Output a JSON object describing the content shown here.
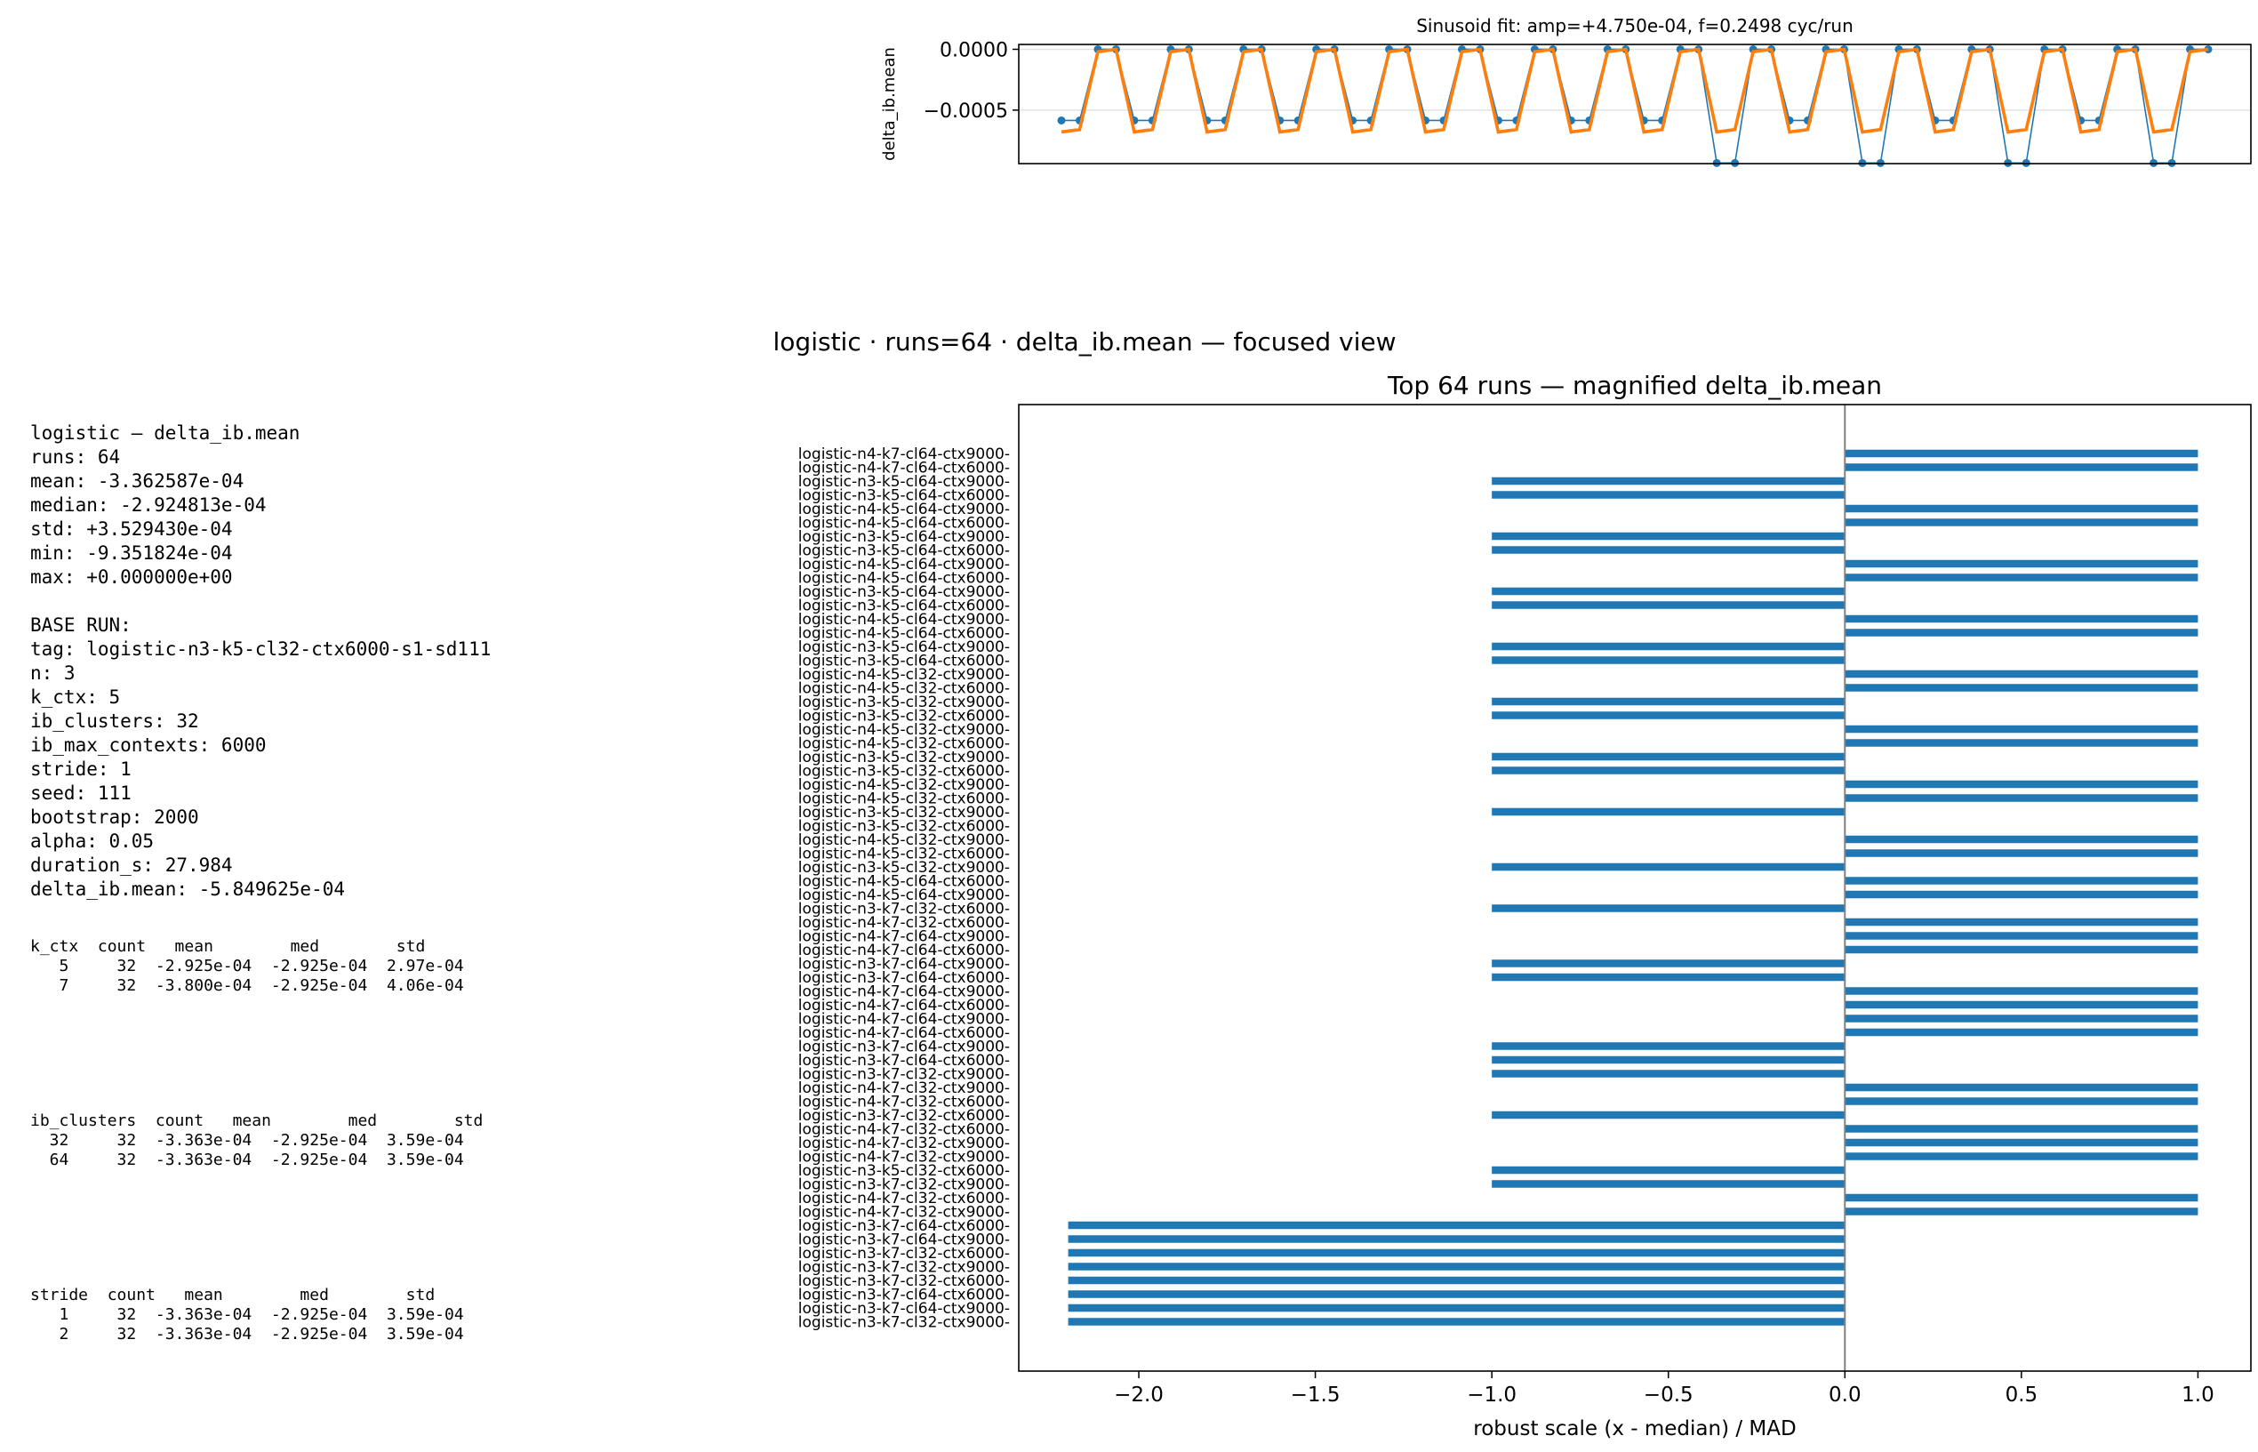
{
  "stats_panel": [
    "logistic — delta_ib.mean",
    "runs: 64",
    "mean: -3.362587e-04",
    "median: -2.924813e-04",
    "std: +3.529430e-04",
    "min: -9.351824e-04",
    "max: +0.000000e+00",
    "",
    "BASE RUN:",
    "tag: logistic-n3-k5-cl32-ctx6000-s1-sd111",
    "n: 3",
    "k_ctx: 5",
    "ib_clusters: 32",
    "ib_max_contexts: 6000",
    "stride: 1",
    "seed: 111",
    "bootstrap: 2000",
    "alpha: 0.05",
    "duration_s: 27.984",
    "delta_ib.mean: -5.849625e-04"
  ],
  "group_tables": [
    {
      "id": "k_ctx",
      "lines": [
        "k_ctx  count   mean        med        std",
        "   5     32  -2.925e-04  -2.925e-04  2.97e-04",
        "   7     32  -3.800e-04  -2.925e-04  4.06e-04"
      ]
    },
    {
      "id": "ib_clusters",
      "lines": [
        "ib_clusters  count   mean        med        std",
        "  32     32  -3.363e-04  -2.925e-04  3.59e-04",
        "  64     32  -3.363e-04  -2.925e-04  3.59e-04"
      ]
    },
    {
      "id": "stride",
      "lines": [
        "stride  count   mean        med        std",
        "   1     32  -3.363e-04  -2.925e-04  3.59e-04",
        "   2     32  -3.363e-04  -2.925e-04  3.59e-04"
      ]
    }
  ],
  "figure": {
    "suptitle": "logistic · runs=64 · delta_ib.mean — focused view"
  },
  "chart_data": [
    {
      "type": "line",
      "title": "Sinusoid fit: amp=+4.750e-04, f=0.2498 cyc/run",
      "xlabel": "",
      "ylabel": "delta_ib.mean",
      "ylim": [
        -0.00094,
        4e-05
      ],
      "yticks": [
        0.0,
        -0.0005
      ],
      "ytick_labels": [
        "0.0000",
        "−0.0005"
      ],
      "grid_y": true,
      "colors": {
        "observed": "#1f77b4",
        "fit": "#ff7f0e"
      },
      "series": [
        {
          "role": "observed",
          "values": [
            -0.000585,
            -0.000585,
            0,
            0,
            -0.000585,
            -0.000585,
            0,
            0,
            -0.000585,
            -0.000585,
            0,
            0,
            -0.000585,
            -0.000585,
            0,
            0,
            -0.000585,
            -0.000585,
            0,
            0,
            -0.000585,
            -0.000585,
            0,
            0,
            -0.000585,
            -0.000585,
            0,
            0,
            -0.000585,
            -0.000585,
            0,
            0,
            -0.000585,
            -0.000585,
            0,
            0,
            -0.000935,
            -0.000935,
            0,
            0,
            -0.000585,
            -0.000585,
            0,
            0,
            -0.000935,
            -0.000935,
            0,
            0,
            -0.000585,
            -0.000585,
            0,
            0,
            -0.000935,
            -0.000935,
            0,
            0,
            -0.000585,
            -0.000585,
            0,
            0,
            -0.000935,
            -0.000935,
            0,
            0
          ]
        },
        {
          "role": "fit",
          "values": [
            -0.00068,
            -0.00066,
            -2e-05,
            0.0,
            -0.00068,
            -0.00066,
            -2e-05,
            0.0,
            -0.00068,
            -0.00066,
            -2e-05,
            0.0,
            -0.00068,
            -0.00066,
            -2e-05,
            0.0,
            -0.00068,
            -0.00066,
            -2e-05,
            0.0,
            -0.00068,
            -0.00066,
            -2e-05,
            0.0,
            -0.00068,
            -0.00066,
            -2e-05,
            0.0,
            -0.00068,
            -0.00066,
            -2e-05,
            0.0,
            -0.00068,
            -0.00066,
            -2e-05,
            0.0,
            -0.00068,
            -0.00066,
            -2e-05,
            0.0,
            -0.00068,
            -0.00066,
            -2e-05,
            0.0,
            -0.00068,
            -0.00066,
            -2e-05,
            0.0,
            -0.00068,
            -0.00066,
            -2e-05,
            0.0,
            -0.00068,
            -0.00066,
            -2e-05,
            0.0,
            -0.00068,
            -0.00066,
            -2e-05,
            0.0,
            -0.00068,
            -0.00066,
            -2e-05,
            0.0
          ]
        }
      ]
    },
    {
      "type": "bar",
      "orientation": "horizontal",
      "title": "Top 64 runs — magnified delta_ib.mean",
      "xlabel": "robust scale  (x - median) / MAD",
      "ylabel": "",
      "xlim": [
        -2.34,
        1.15
      ],
      "xticks": [
        -2.0,
        -1.5,
        -1.0,
        -0.5,
        0.0,
        0.5,
        1.0
      ],
      "xtick_labels": [
        "−2.0",
        "−1.5",
        "−1.0",
        "−0.5",
        "0.0",
        "0.5",
        "1.0"
      ],
      "reference_line_x": 0,
      "bar_color": "#1f77b4",
      "categories": [
        "logistic-n4-k7-cl64-ctx9000-",
        "logistic-n4-k7-cl64-ctx6000-",
        "logistic-n3-k5-cl64-ctx9000-",
        "logistic-n3-k5-cl64-ctx6000-",
        "logistic-n4-k5-cl64-ctx9000-",
        "logistic-n4-k5-cl64-ctx6000-",
        "logistic-n3-k5-cl64-ctx9000-",
        "logistic-n3-k5-cl64-ctx6000-",
        "logistic-n4-k5-cl64-ctx9000-",
        "logistic-n4-k5-cl64-ctx6000-",
        "logistic-n3-k5-cl64-ctx9000-",
        "logistic-n3-k5-cl64-ctx6000-",
        "logistic-n4-k5-cl64-ctx9000-",
        "logistic-n4-k5-cl64-ctx6000-",
        "logistic-n3-k5-cl64-ctx9000-",
        "logistic-n3-k5-cl64-ctx6000-",
        "logistic-n4-k5-cl32-ctx9000-",
        "logistic-n4-k5-cl32-ctx6000-",
        "logistic-n3-k5-cl32-ctx9000-",
        "logistic-n3-k5-cl32-ctx6000-",
        "logistic-n4-k5-cl32-ctx9000-",
        "logistic-n4-k5-cl32-ctx6000-",
        "logistic-n3-k5-cl32-ctx9000-",
        "logistic-n3-k5-cl32-ctx6000-",
        "logistic-n4-k5-cl32-ctx9000-",
        "logistic-n4-k5-cl32-ctx6000-",
        "logistic-n3-k5-cl32-ctx9000-",
        "logistic-n3-k5-cl32-ctx6000-",
        "logistic-n4-k5-cl32-ctx9000-",
        "logistic-n4-k5-cl32-ctx6000-",
        "logistic-n3-k5-cl32-ctx9000-",
        "logistic-n4-k5-cl64-ctx6000-",
        "logistic-n4-k5-cl64-ctx9000-",
        "logistic-n3-k7-cl32-ctx6000-",
        "logistic-n4-k7-cl32-ctx6000-",
        "logistic-n4-k7-cl64-ctx9000-",
        "logistic-n4-k7-cl64-ctx6000-",
        "logistic-n3-k7-cl64-ctx9000-",
        "logistic-n3-k7-cl64-ctx6000-",
        "logistic-n4-k7-cl64-ctx9000-",
        "logistic-n4-k7-cl64-ctx6000-",
        "logistic-n4-k7-cl64-ctx9000-",
        "logistic-n4-k7-cl64-ctx6000-",
        "logistic-n3-k7-cl64-ctx9000-",
        "logistic-n3-k7-cl64-ctx6000-",
        "logistic-n3-k7-cl32-ctx9000-",
        "logistic-n4-k7-cl32-ctx9000-",
        "logistic-n4-k7-cl32-ctx6000-",
        "logistic-n3-k7-cl32-ctx6000-",
        "logistic-n4-k7-cl32-ctx6000-",
        "logistic-n4-k7-cl32-ctx9000-",
        "logistic-n4-k7-cl32-ctx9000-",
        "logistic-n3-k5-cl32-ctx6000-",
        "logistic-n3-k7-cl32-ctx9000-",
        "logistic-n4-k7-cl32-ctx6000-",
        "logistic-n4-k7-cl32-ctx9000-",
        "logistic-n3-k7-cl64-ctx6000-",
        "logistic-n3-k7-cl64-ctx9000-",
        "logistic-n3-k7-cl32-ctx6000-",
        "logistic-n3-k7-cl32-ctx9000-",
        "logistic-n3-k7-cl32-ctx6000-",
        "logistic-n3-k7-cl64-ctx6000-",
        "logistic-n3-k7-cl64-ctx9000-",
        "logistic-n3-k7-cl32-ctx9000-"
      ],
      "values": [
        1,
        1,
        -1,
        -1,
        1,
        1,
        -1,
        -1,
        1,
        1,
        -1,
        -1,
        1,
        1,
        -1,
        -1,
        1,
        1,
        -1,
        -1,
        1,
        1,
        -1,
        -1,
        1,
        1,
        -1,
        0,
        1,
        1,
        -1,
        1,
        1,
        -1,
        1,
        1,
        1,
        -1,
        -1,
        1,
        1,
        1,
        1,
        -1,
        -1,
        -1,
        1,
        1,
        -1,
        1,
        1,
        1,
        -1,
        -1,
        1,
        1,
        -2.2,
        -2.2,
        -2.2,
        -2.2,
        -2.2,
        -2.2,
        -2.2,
        -2.2
      ]
    }
  ]
}
